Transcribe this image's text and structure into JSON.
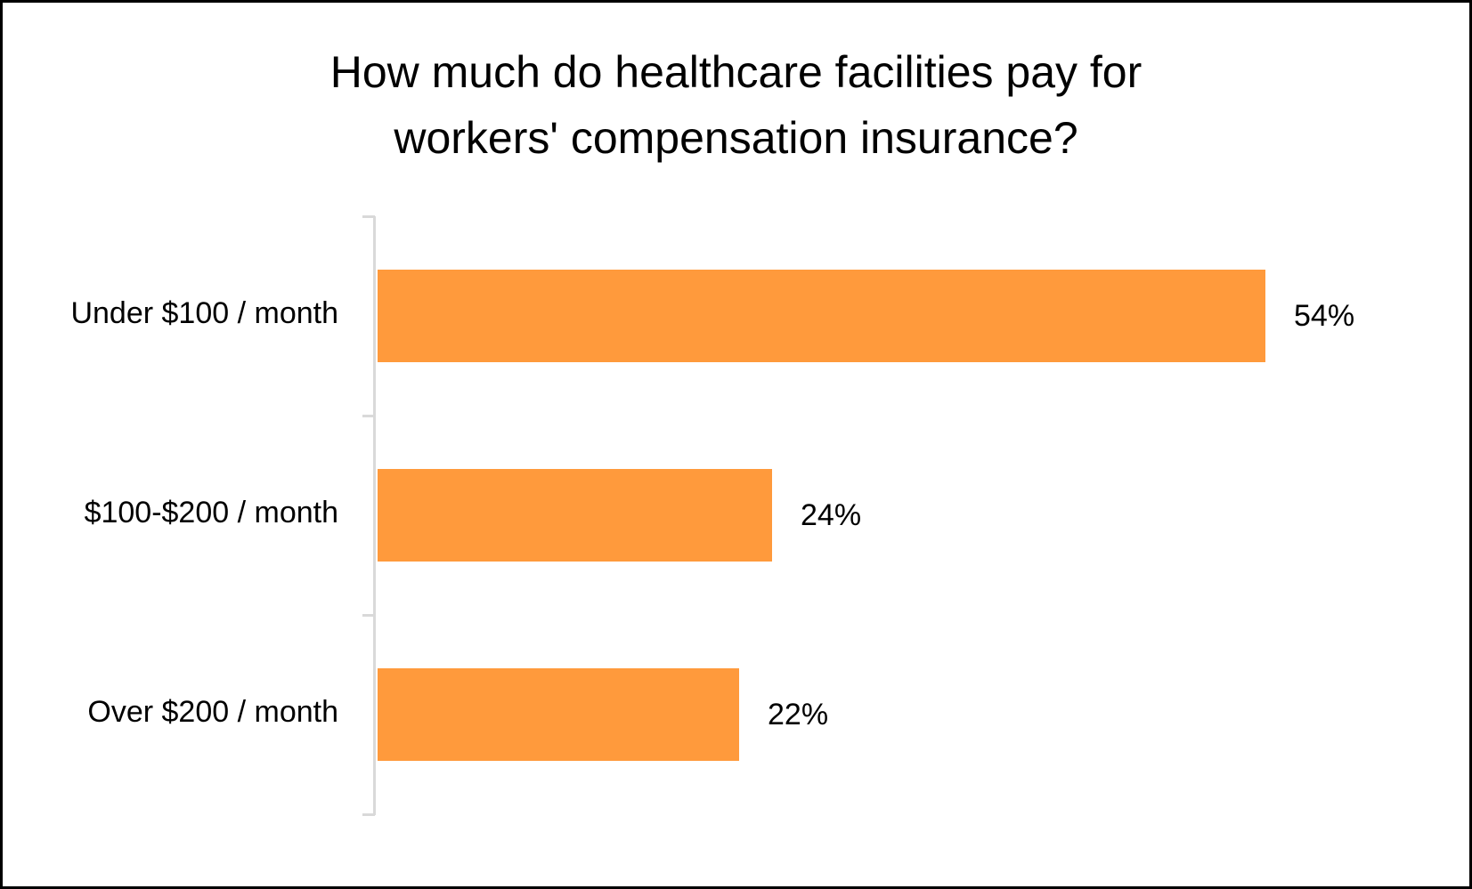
{
  "chart_data": {
    "type": "bar",
    "orientation": "horizontal",
    "title": "How much do healthcare facilities pay for workers' compensation insurance?",
    "title_lines": [
      "How much do healthcare facilities pay for",
      "workers' compensation insurance?"
    ],
    "categories": [
      "Under $100 / month",
      "$100-$200 / month",
      "Over $200 / month"
    ],
    "values": [
      54,
      24,
      22
    ],
    "value_labels": [
      "54%",
      "24%",
      "22%"
    ],
    "unit": "%",
    "xlabel": "",
    "ylabel": "",
    "xlim": [
      0,
      54
    ],
    "grid": false,
    "legend": null,
    "bar_color": "#ff9a3c"
  }
}
